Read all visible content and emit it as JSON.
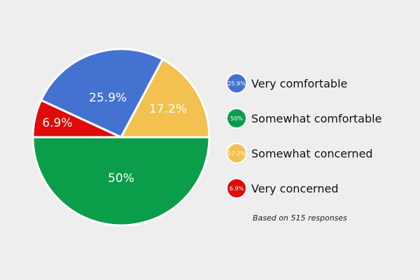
{
  "chart_data": {
    "type": "pie",
    "title": "",
    "slices": [
      {
        "label": "Very comfortable",
        "value": 25.9,
        "display": "25.9%",
        "legend_display": "25.9%",
        "color": "#4472d0"
      },
      {
        "label": "Somewhat comfortable",
        "value": 50,
        "display": "50%",
        "legend_display": "50%",
        "color": "#0a9e4a"
      },
      {
        "label": "Somewhat concerned",
        "value": 17.2,
        "display": "17.2%",
        "legend_display": "17.2%",
        "color": "#f2c14f"
      },
      {
        "label": "Very concerned",
        "value": 6.9,
        "display": "6.9%",
        "legend_display": "6.9%",
        "color": "#e00a0a"
      }
    ],
    "legend_position": "right",
    "note": "Based on 515 responses"
  }
}
